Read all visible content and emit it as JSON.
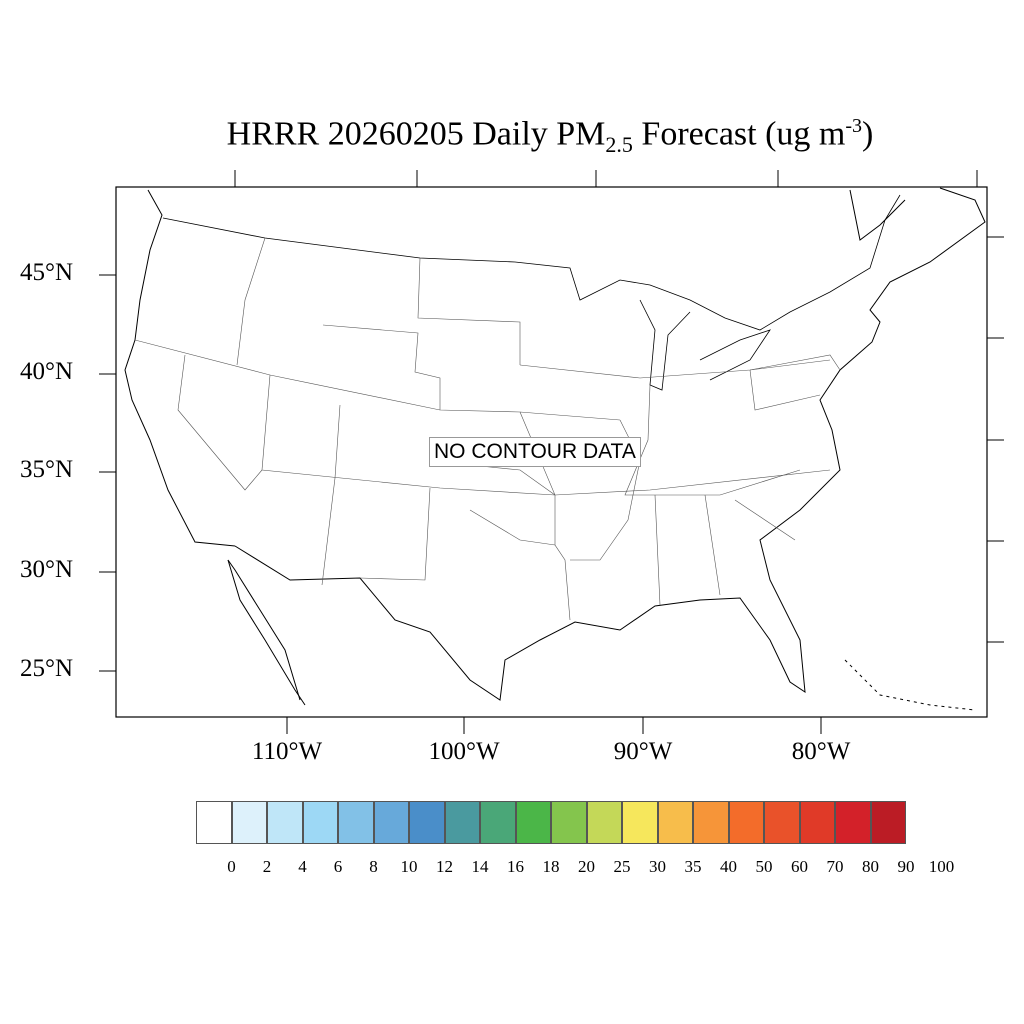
{
  "title": {
    "prefix": "HRRR 20260205 Daily PM",
    "subscript": "2.5",
    "middle": " Forecast (ug m",
    "superscript": "-3",
    "suffix": ")"
  },
  "map": {
    "region": "CONUS",
    "lat_labels": [
      "45°N",
      "40°N",
      "35°N",
      "30°N",
      "25°N"
    ],
    "lon_labels": [
      "110°W",
      "100°W",
      "90°W",
      "80°W"
    ],
    "message": "NO CONTOUR DATA"
  },
  "colorbar": {
    "labels": [
      "0",
      "2",
      "4",
      "6",
      "8",
      "10",
      "12",
      "14",
      "16",
      "18",
      "20",
      "25",
      "30",
      "35",
      "40",
      "50",
      "60",
      "70",
      "80",
      "90",
      "100"
    ],
    "colors": [
      "#ffffff",
      "#ddf1fb",
      "#bfe6f8",
      "#9dd8f5",
      "#82c1e7",
      "#67a9da",
      "#4a8ec9",
      "#4a9a9f",
      "#4aa778",
      "#4bb648",
      "#84c54d",
      "#c4d858",
      "#f6e75c",
      "#f7bd4b",
      "#f69539",
      "#f36c2a",
      "#e9522a",
      "#e03a28",
      "#d32129",
      "#bb1c25",
      "#a91c21",
      "#8f1618"
    ]
  }
}
